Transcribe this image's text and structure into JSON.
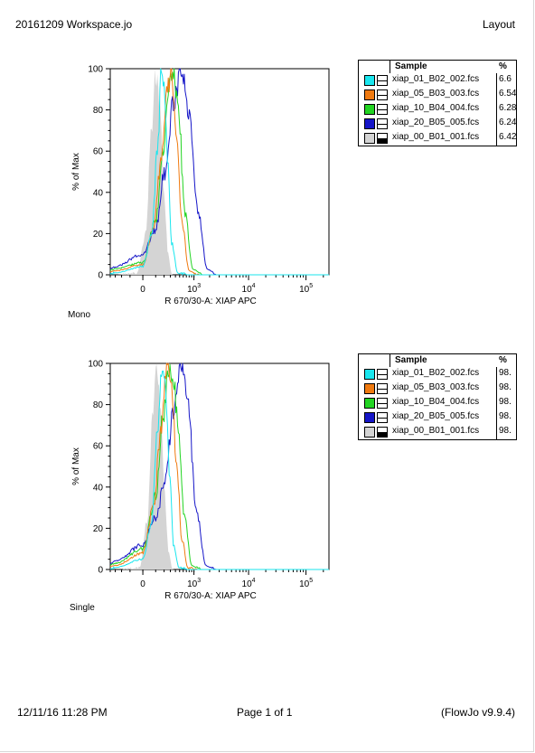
{
  "header": {
    "title": "20161209 Workspace.jo",
    "right": "Layout"
  },
  "footer": {
    "date": "12/11/16 11:28 PM",
    "page": "Page 1 of 1",
    "app": "(FlowJo v9.9.4)"
  },
  "legend_header": {
    "sample": "Sample",
    "pct": "%"
  },
  "colors": {
    "cyan": "#19e6ee",
    "orange": "#f07a10",
    "green": "#22d422",
    "blue": "#1515c8",
    "gray": "#d4d4d4"
  },
  "chart_data": [
    {
      "type": "line",
      "panel_label": "Mono",
      "xlabel": "R 670/30-A: XIAP APC",
      "ylabel": "% of Max",
      "x_scale": "biexponential",
      "x_ticks": [
        0,
        1000,
        10000,
        100000
      ],
      "x_tick_labels": [
        "0",
        "10^3",
        "10^4",
        "10^5"
      ],
      "y_ticks": [
        0,
        20,
        40,
        60,
        80,
        100
      ],
      "ylim": [
        0,
        100
      ],
      "series": [
        {
          "name": "xiap_01_B02_002.fcs",
          "pct": "6.6",
          "color": "#19e6ee",
          "peak_x": 150,
          "values": [
            [
              -300,
              1
            ],
            [
              0,
              4
            ],
            [
              60,
              18
            ],
            [
              120,
              60
            ],
            [
              160,
              98
            ],
            [
              200,
              90
            ],
            [
              250,
              55
            ],
            [
              330,
              15
            ],
            [
              450,
              1
            ]
          ]
        },
        {
          "name": "xiap_05_B03_003.fcs",
          "pct": "6.54",
          "color": "#f07a10",
          "peak_x": 300,
          "values": [
            [
              -300,
              2
            ],
            [
              0,
              5
            ],
            [
              80,
              22
            ],
            [
              160,
              55
            ],
            [
              250,
              90
            ],
            [
              320,
              98
            ],
            [
              420,
              70
            ],
            [
              560,
              25
            ],
            [
              800,
              2
            ]
          ]
        },
        {
          "name": "xiap_10_B04_004.fcs",
          "pct": "6.28",
          "color": "#22d422",
          "peak_x": 350,
          "values": [
            [
              -300,
              3
            ],
            [
              0,
              6
            ],
            [
              100,
              26
            ],
            [
              180,
              58
            ],
            [
              280,
              93
            ],
            [
              360,
              98
            ],
            [
              470,
              80
            ],
            [
              650,
              30
            ],
            [
              950,
              3
            ]
          ]
        },
        {
          "name": "xiap_20_B05_005.fcs",
          "pct": "6.24",
          "color": "#1515c8",
          "peak_x": 600,
          "values": [
            [
              -300,
              4
            ],
            [
              0,
              10
            ],
            [
              100,
              22
            ],
            [
              200,
              48
            ],
            [
              350,
              82
            ],
            [
              550,
              100
            ],
            [
              800,
              80
            ],
            [
              1200,
              30
            ],
            [
              1800,
              3
            ]
          ]
        },
        {
          "name": "xiap_00_B01_001.fcs",
          "pct": "6.42",
          "color": "#d4d4d4",
          "filled": true,
          "peak_x": 100,
          "values": [
            [
              -40,
              1
            ],
            [
              20,
              20
            ],
            [
              60,
              70
            ],
            [
              100,
              98
            ],
            [
              140,
              85
            ],
            [
              200,
              40
            ],
            [
              260,
              10
            ],
            [
              330,
              0
            ]
          ]
        }
      ]
    },
    {
      "type": "line",
      "panel_label": "Single",
      "xlabel": "R 670/30-A: XIAP APC",
      "ylabel": "% of Max",
      "x_scale": "biexponential",
      "x_ticks": [
        0,
        1000,
        10000,
        100000
      ],
      "x_tick_labels": [
        "0",
        "10^3",
        "10^4",
        "10^5"
      ],
      "y_ticks": [
        0,
        20,
        40,
        60,
        80,
        100
      ],
      "ylim": [
        0,
        100
      ],
      "series": [
        {
          "name": "xiap_01_B02_002.fcs",
          "pct": "98.",
          "color": "#19e6ee",
          "values": [
            [
              -300,
              1
            ],
            [
              0,
              5
            ],
            [
              60,
              22
            ],
            [
              120,
              65
            ],
            [
              170,
              98
            ],
            [
              220,
              88
            ],
            [
              280,
              50
            ],
            [
              360,
              12
            ],
            [
              480,
              1
            ]
          ]
        },
        {
          "name": "xiap_05_B03_003.fcs",
          "pct": "98.",
          "color": "#f07a10",
          "values": [
            [
              -300,
              2
            ],
            [
              0,
              8
            ],
            [
              80,
              30
            ],
            [
              160,
              70
            ],
            [
              240,
              98
            ],
            [
              320,
              90
            ],
            [
              420,
              55
            ],
            [
              560,
              15
            ],
            [
              750,
              1
            ]
          ]
        },
        {
          "name": "xiap_10_B04_004.fcs",
          "pct": "98.",
          "color": "#22d422",
          "values": [
            [
              -300,
              3
            ],
            [
              0,
              10
            ],
            [
              100,
              35
            ],
            [
              180,
              72
            ],
            [
              270,
              98
            ],
            [
              360,
              92
            ],
            [
              470,
              68
            ],
            [
              640,
              25
            ],
            [
              900,
              2
            ]
          ]
        },
        {
          "name": "xiap_20_B05_005.fcs",
          "pct": "98.",
          "color": "#1515c8",
          "values": [
            [
              -300,
              4
            ],
            [
              0,
              12
            ],
            [
              100,
              25
            ],
            [
              200,
              40
            ],
            [
              350,
              75
            ],
            [
              550,
              98
            ],
            [
              750,
              82
            ],
            [
              1100,
              30
            ],
            [
              1700,
              2
            ]
          ]
        },
        {
          "name": "xiap_00_B01_001.fcs",
          "pct": "98.",
          "color": "#d4d4d4",
          "filled": true,
          "values": [
            [
              -20,
              1
            ],
            [
              30,
              25
            ],
            [
              70,
              75
            ],
            [
              110,
              98
            ],
            [
              150,
              80
            ],
            [
              210,
              35
            ],
            [
              270,
              8
            ],
            [
              340,
              0
            ]
          ]
        }
      ]
    }
  ]
}
